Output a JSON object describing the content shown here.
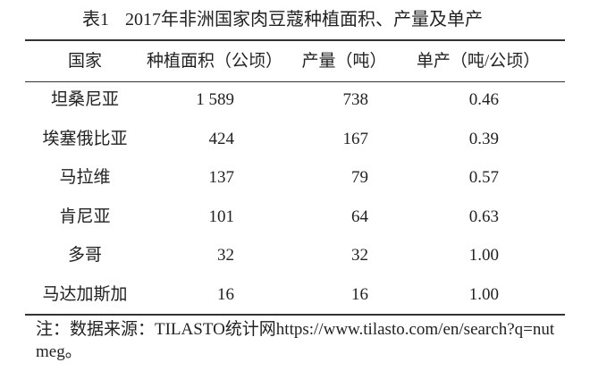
{
  "title": {
    "number": "表1",
    "text": "2017年非洲国家肉豆蔻种植面积、产量及单产"
  },
  "table": {
    "header": [
      "国家",
      "种植面积（公顷）",
      "产量（吨）",
      "单产（吨/公顷）"
    ],
    "rows": [
      [
        "坦桑尼亚",
        "1 589",
        "738",
        "0.46"
      ],
      [
        "埃塞俄比亚",
        "424",
        "167",
        "0.39"
      ],
      [
        "马拉维",
        "137",
        "79",
        "0.57"
      ],
      [
        "肯尼亚",
        "101",
        "64",
        "0.63"
      ],
      [
        "多哥",
        "32",
        "32",
        "1.00"
      ],
      [
        "马达加斯加",
        "16",
        "16",
        "1.00"
      ]
    ]
  },
  "note": "注：数据来源：TILASTO统计网https://www.tilasto.com/en/search?q=nutmeg。"
}
